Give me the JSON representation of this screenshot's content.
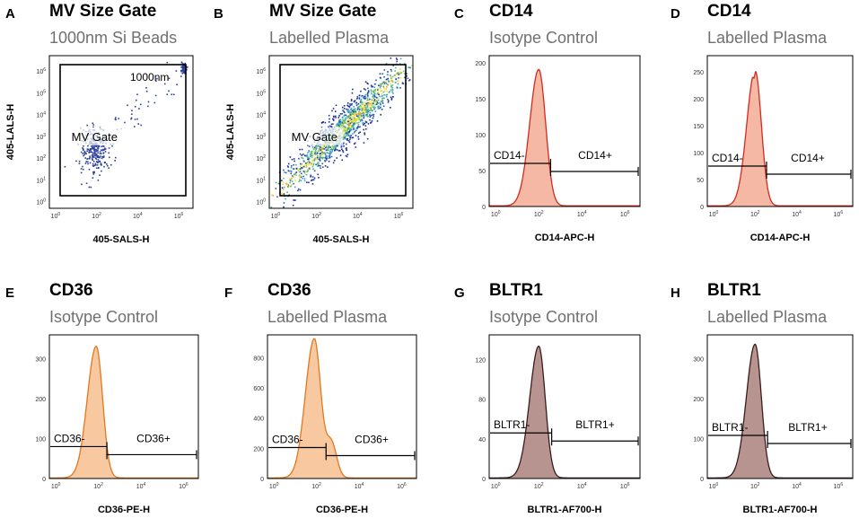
{
  "figure": {
    "description_letters": [
      "A",
      "B",
      "C",
      "D",
      "E",
      "F",
      "G",
      "H"
    ]
  },
  "chart_data": [
    {
      "panel": "A",
      "type": "scatter",
      "title": "MV Size Gate",
      "subtitle": "1000nm Si Beads",
      "xlabel": "405-SALS-H",
      "ylabel": "405-LALS-H",
      "xscale": "log",
      "yscale": "log",
      "xlim": [
        0.5,
        5000000
      ],
      "ylim": [
        0.5,
        5000000
      ],
      "x_ticks": [
        "10^0",
        "10^2",
        "10^4",
        "10^6"
      ],
      "y_ticks": [
        "10^0",
        "10^1",
        "10^2",
        "10^3",
        "10^4",
        "10^5",
        "10^6"
      ],
      "gate_label": "MV Gate",
      "annotation": {
        "text": "1000nm",
        "color": "#d6006e"
      },
      "clusters": [
        {
          "center_log": [
            1.9,
            2.4
          ],
          "spread_log": [
            0.35,
            0.55
          ],
          "count": 260
        },
        {
          "center_log": [
            6.2,
            6.15
          ],
          "spread_log": [
            0.07,
            0.12
          ],
          "count": 70
        },
        {
          "center_log": [
            4.2,
            4.4
          ],
          "spread_log": [
            1.0,
            0.9
          ],
          "count": 45,
          "diagonal": true
        }
      ]
    },
    {
      "panel": "B",
      "type": "scatter",
      "title": "MV Size Gate",
      "subtitle": "Labelled Plasma",
      "xlabel": "405-SALS-H",
      "ylabel": "405-LALS-H",
      "xscale": "log",
      "yscale": "log",
      "xlim": [
        0.5,
        5000000
      ],
      "ylim": [
        0.5,
        5000000
      ],
      "x_ticks": [
        "10^0",
        "10^2",
        "10^4",
        "10^6"
      ],
      "y_ticks": [
        "10^0",
        "10^1",
        "10^2",
        "10^3",
        "10^4",
        "10^5",
        "10^6"
      ],
      "gate_label": "MV Gate",
      "clusters": [
        {
          "center_log": [
            3.3,
            3.4
          ],
          "spread_log": [
            1.4,
            1.3
          ],
          "count": 1400,
          "diagonal": true,
          "density": true
        }
      ]
    },
    {
      "panel": "C",
      "type": "histogram",
      "title": "CD14",
      "subtitle": "Isotype Control",
      "xlabel": "CD14-APC-H",
      "xscale": "log",
      "x_ticks": [
        "10^0",
        "10^2",
        "10^4",
        "10^6"
      ],
      "y_ticks": [
        0,
        50,
        100,
        150,
        200
      ],
      "ylim": [
        0,
        210
      ],
      "peak_log": 2.0,
      "peak_count": 190,
      "width_left": 0.42,
      "width_right": 0.32,
      "fill": "#f4b8a4",
      "line": "#d32b1e",
      "gate": {
        "neg_label": "CD14-",
        "pos_label": "CD14+",
        "split_log": 2.55,
        "y": 60
      }
    },
    {
      "panel": "D",
      "type": "histogram",
      "title": "CD14",
      "subtitle": "Labelled Plasma",
      "xlabel": "CD14-APC-H",
      "xscale": "log",
      "x_ticks": [
        "10^0",
        "10^2",
        "10^4",
        "10^6"
      ],
      "y_ticks": [
        0,
        50,
        100,
        150,
        200,
        250
      ],
      "ylim": [
        0,
        280
      ],
      "peak_log": 2.0,
      "peak_count": 252,
      "width_left": 0.4,
      "width_right": 0.3,
      "double_peak": true,
      "fill": "#f4b8a4",
      "line": "#d32b1e",
      "gate": {
        "neg_label": "CD14-",
        "pos_label": "CD14+",
        "split_log": 2.55,
        "y": 75
      }
    },
    {
      "panel": "E",
      "type": "histogram",
      "title": "CD36",
      "subtitle": "Isotype Control",
      "xlabel": "CD36-PE-H",
      "xscale": "log",
      "x_ticks": [
        "10^0",
        "10^2",
        "10^4",
        "10^6"
      ],
      "y_ticks": [
        0,
        100,
        200,
        300
      ],
      "ylim": [
        0,
        360
      ],
      "peak_log": 1.9,
      "peak_count": 330,
      "width_left": 0.42,
      "width_right": 0.3,
      "fill": "#f8c9a0",
      "line": "#e0781f",
      "gate": {
        "neg_label": "CD36-",
        "pos_label": "CD36+",
        "split_log": 2.4,
        "y": 80
      }
    },
    {
      "panel": "F",
      "type": "histogram",
      "title": "CD36",
      "subtitle": "Labelled Plasma",
      "xlabel": "CD36-PE-H",
      "xscale": "log",
      "x_ticks": [
        "10^0",
        "10^2",
        "10^4",
        "10^6"
      ],
      "y_ticks": [
        0,
        200,
        400,
        600,
        800
      ],
      "ylim": [
        0,
        950
      ],
      "peak_log": 1.9,
      "peak_count": 920,
      "width_left": 0.42,
      "width_right": 0.3,
      "shoulder": {
        "log": 2.7,
        "count": 230,
        "width": 0.25
      },
      "fill": "#f8c9a0",
      "line": "#e0781f",
      "gate": {
        "neg_label": "CD36-",
        "pos_label": "CD36+",
        "split_log": 2.45,
        "y": 205
      }
    },
    {
      "panel": "G",
      "type": "histogram",
      "title": "BLTR1",
      "subtitle": "Isotype Control",
      "xlabel": "BLTR1-AF700-H",
      "xscale": "log",
      "x_ticks": [
        "10^0",
        "10^2",
        "10^4",
        "10^6"
      ],
      "y_ticks": [
        0,
        40,
        80,
        120
      ],
      "ylim": [
        0,
        145
      ],
      "peak_log": 2.0,
      "peak_count": 133,
      "width_left": 0.42,
      "width_right": 0.3,
      "fill": "#b79490",
      "line": "#3a1d1b",
      "gate": {
        "neg_label": "BLTR1-",
        "pos_label": "BLTR1+",
        "split_log": 2.6,
        "y": 46
      }
    },
    {
      "panel": "H",
      "type": "histogram",
      "title": "BLTR1",
      "subtitle": "Labelled Plasma",
      "xlabel": "BLTR1-AF700-H",
      "xscale": "log",
      "x_ticks": [
        "10^0",
        "10^2",
        "10^4",
        "10^6"
      ],
      "y_ticks": [
        0,
        100,
        200,
        300
      ],
      "ylim": [
        0,
        360
      ],
      "peak_log": 2.0,
      "peak_count": 335,
      "width_left": 0.42,
      "width_right": 0.3,
      "fill": "#b79490",
      "line": "#3a1d1b",
      "gate": {
        "neg_label": "BLTR1-",
        "pos_label": "BLTR1+",
        "split_log": 2.6,
        "y": 108
      }
    }
  ]
}
